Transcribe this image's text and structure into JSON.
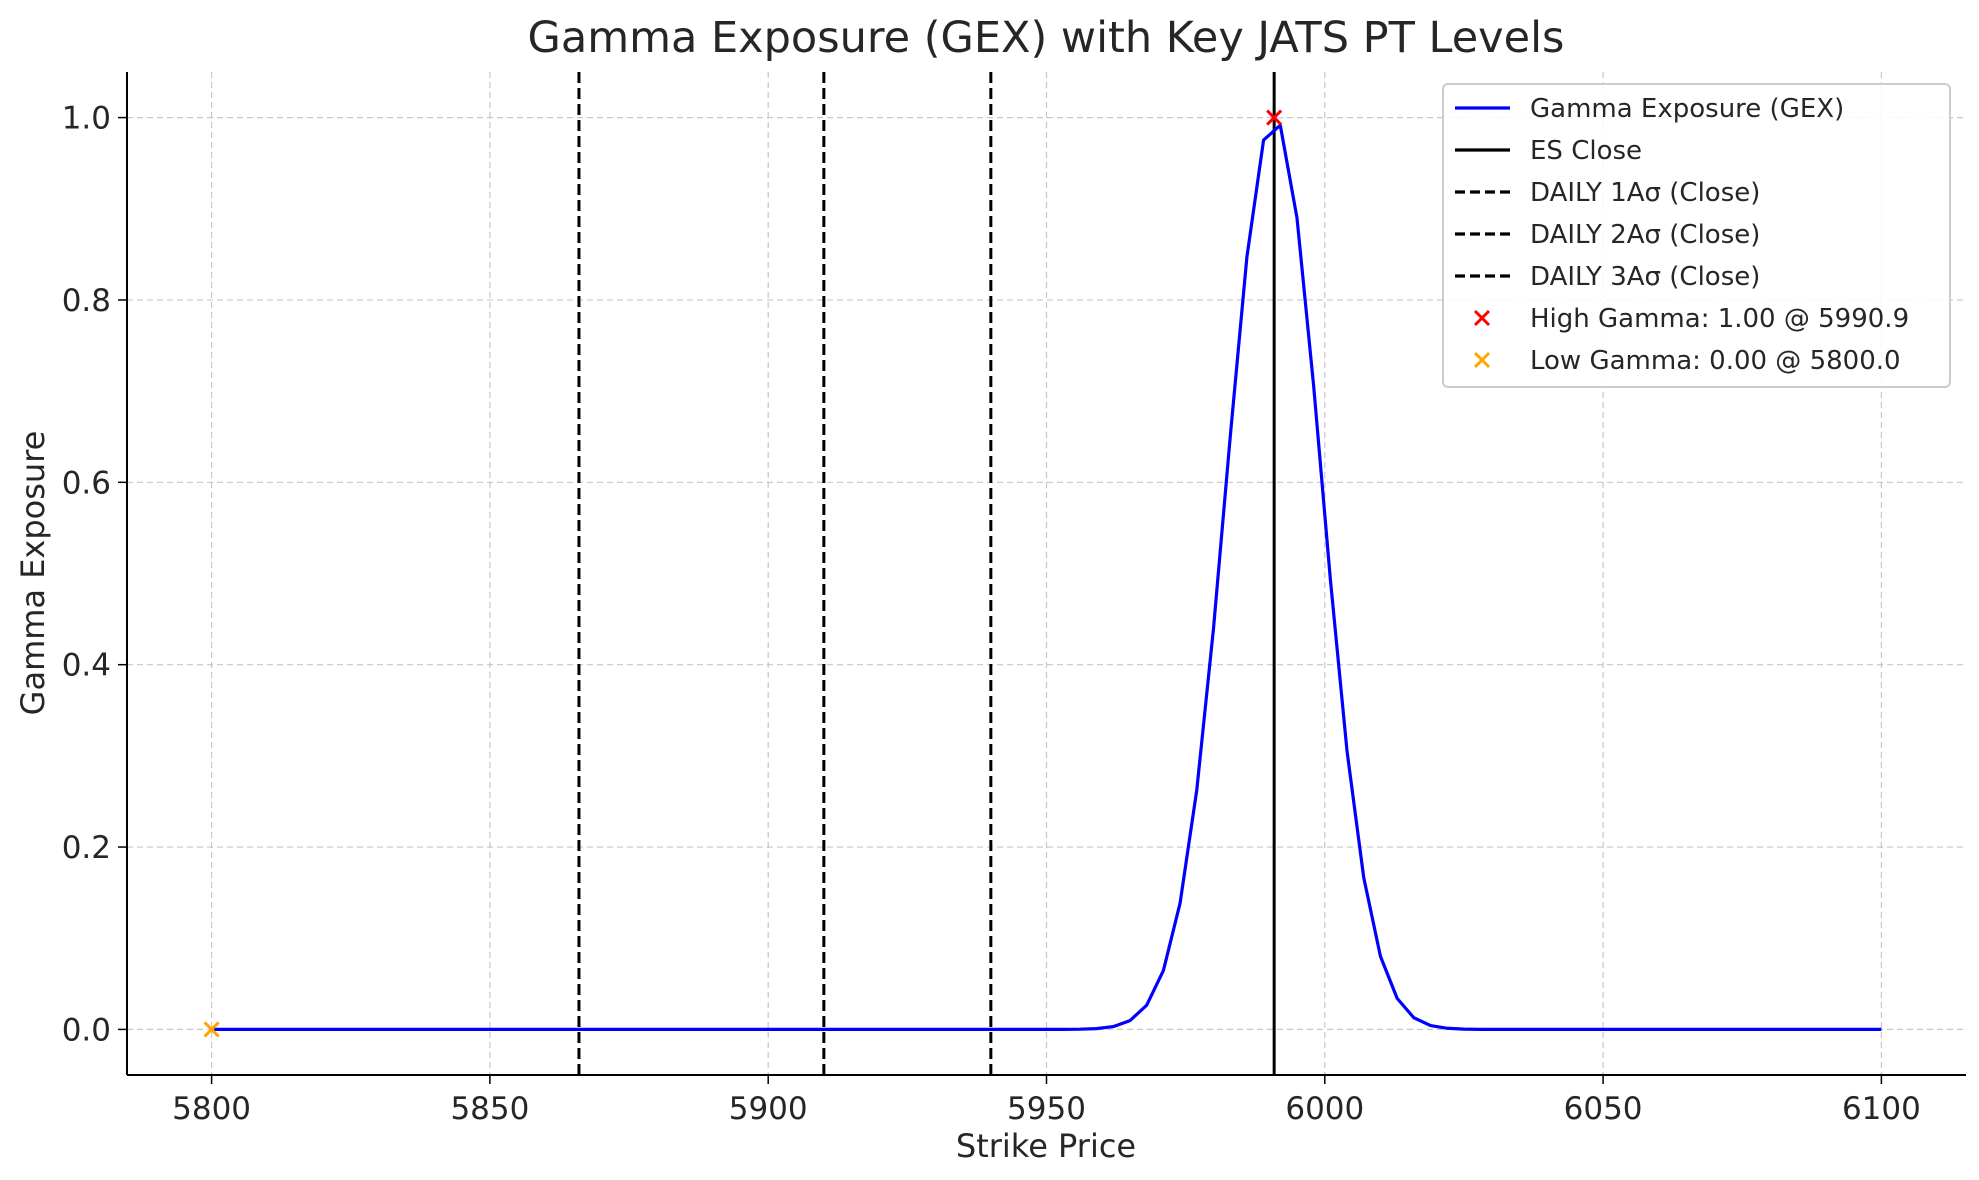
{
  "chart_data": {
    "type": "line",
    "title": "Gamma Exposure (GEX) with Key JATS PT Levels",
    "xlabel": "Strike Price",
    "ylabel": "Gamma Exposure",
    "xlim": [
      5784.8,
      6115.2
    ],
    "ylim": [
      -0.05,
      1.05
    ],
    "xticks": [
      5800,
      5850,
      5900,
      5950,
      6000,
      6050,
      6100
    ],
    "xtick_labels": [
      "5800",
      "5850",
      "5900",
      "5950",
      "6000",
      "6050",
      "6100"
    ],
    "yticks": [
      0.0,
      0.2,
      0.4,
      0.6,
      0.8,
      1.0
    ],
    "ytick_labels": [
      "0.0",
      "0.2",
      "0.4",
      "0.6",
      "0.8",
      "1.0"
    ],
    "grid": true,
    "legend_position": "top-right",
    "series": [
      {
        "name": "Gamma Exposure (GEX)",
        "color": "#0000ff",
        "style": "solid",
        "gaussian": {
          "center": 5990.9,
          "sigma": 8.5,
          "x_start": 5800,
          "x_end": 6100,
          "x_step": 3
        }
      }
    ],
    "vlines": [
      {
        "name": "ES Close",
        "x": 5990.9,
        "style": "solid",
        "color": "#000000"
      },
      {
        "name": "DAILY 1Aσ (Close)",
        "x": 5940,
        "style": "dashed",
        "color": "#000000"
      },
      {
        "name": "DAILY 2Aσ (Close)",
        "x": 5910,
        "style": "dashed",
        "color": "#000000"
      },
      {
        "name": "DAILY 3Aσ (Close)",
        "x": 5866,
        "style": "dashed",
        "color": "#000000"
      }
    ],
    "markers": [
      {
        "name": "High Gamma: 1.00 @ 5990.9",
        "x": 5990.9,
        "y": 1.0,
        "symbol": "x",
        "color": "#ff0000"
      },
      {
        "name": "Low Gamma: 0.00 @ 5800.0",
        "x": 5800.0,
        "y": 0.0,
        "symbol": "x",
        "color": "#ffa500"
      }
    ]
  }
}
